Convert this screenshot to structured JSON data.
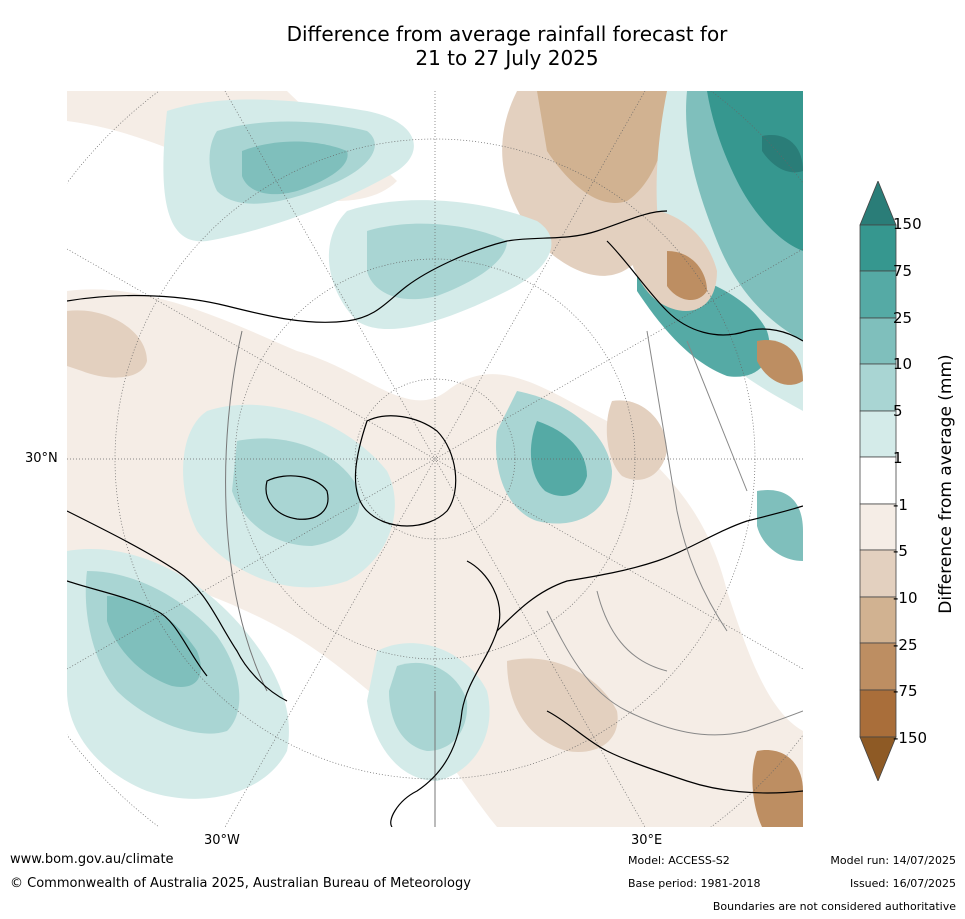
{
  "title_line1": "Difference from average rainfall forecast for",
  "title_line2": "21 to 27 July 2025",
  "map": {
    "lat_label": "30°N",
    "lon_labels": [
      "30°W",
      "30°E"
    ],
    "projection": "north-polar-stereographic"
  },
  "colorbar": {
    "label": "Difference from average (mm)",
    "ticks": [
      "150",
      "75",
      "25",
      "10",
      "5",
      "1",
      "-1",
      "-5",
      "-10",
      "-25",
      "-75",
      "-150"
    ],
    "colors": [
      "#2a7d78",
      "#36978f",
      "#55aaa5",
      "#7fbfbc",
      "#a9d5d3",
      "#d4ebe9",
      "#ffffff",
      "#f5ede6",
      "#e3d0bf",
      "#d1b291",
      "#bd8e62",
      "#a96e3a",
      "#8e5a25"
    ]
  },
  "footer": {
    "website": "www.bom.gov.au/climate",
    "copyright": "© Commonwealth of Australia 2025, Australian Bureau of Meteorology",
    "model": "Model: ACCESS-S2",
    "base_period": "Base period: 1981-2018",
    "model_run": "Model run: 14/07/2025",
    "issued": "Issued: 16/07/2025",
    "boundaries": "Boundaries are not considered authoritative"
  }
}
